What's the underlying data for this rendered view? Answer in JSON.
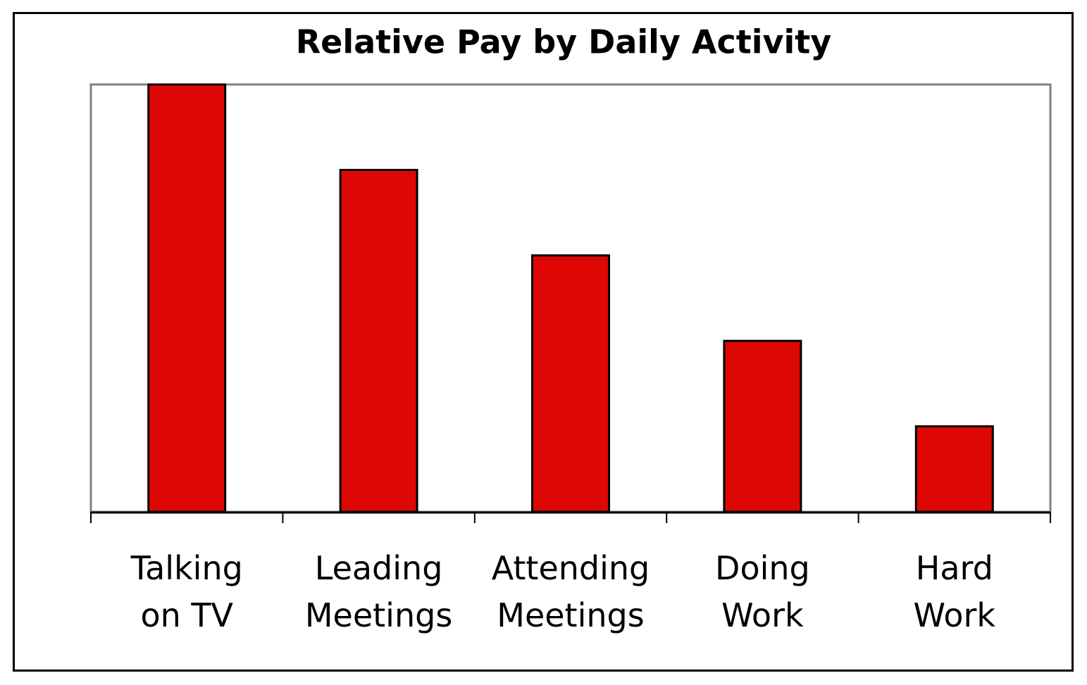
{
  "chart_data": {
    "type": "bar",
    "title": "Relative Pay by Daily Activity",
    "categories": [
      "Talking\non TV",
      "Leading\nMeetings",
      "Attending\nMeetings",
      "Doing\nWork",
      "Hard\nWork"
    ],
    "values": [
      5,
      4,
      3,
      2,
      1
    ],
    "color": "#dd0806",
    "ylim": [
      0,
      5
    ]
  }
}
